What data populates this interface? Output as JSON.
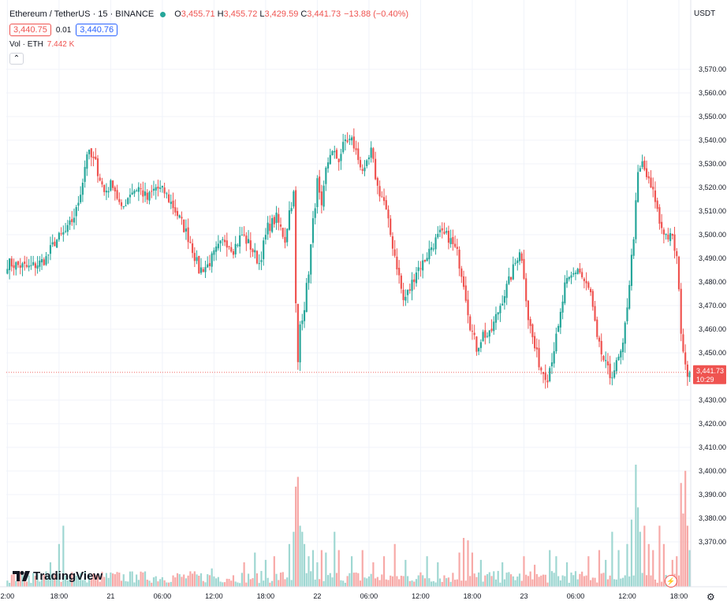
{
  "header": {
    "symbol": "Ethereum / TetherUS · 15 · BINANCE",
    "open_key": "O",
    "open": "3,455.71",
    "high_key": "H",
    "high": "3,455.72",
    "low_key": "L",
    "low": "3,429.59",
    "close_key": "C",
    "close": "3,441.73",
    "change": "−13.88 (−0.40%)",
    "bid": "3,440.75",
    "spread": "0.01",
    "ask": "3,440.76",
    "vol_label": "Vol · ETH",
    "vol_value": "7.442 K",
    "collapse_icon": "chevron-up-icon"
  },
  "price_axis": {
    "currency": "USDT"
  },
  "last_price": {
    "price": "3,441.73",
    "countdown": "10:29"
  },
  "branding": {
    "logo_text": "TradingView"
  },
  "colors": {
    "up": "#26a69a",
    "down": "#ef5350",
    "vol_up": "#9fd7d2",
    "vol_down": "#f7a9a7",
    "grid": "#f0f3fa"
  },
  "chart_data": {
    "type": "candlestick",
    "ylim": [
      3362,
      3580
    ],
    "y_ticks": [
      3370,
      3380,
      3390,
      3400,
      3410,
      3420,
      3430,
      3440,
      3450,
      3460,
      3470,
      3480,
      3490,
      3500,
      3510,
      3520,
      3530,
      3540,
      3550,
      3560,
      3570
    ],
    "y_tick_labels": [
      "3,370.00",
      "3,380.00",
      "3,390.00",
      "3,400.00",
      "3,410.00",
      "3,420.00",
      "3,430.00",
      "3,440.00",
      "3,450.00",
      "3,460.00",
      "3,470.00",
      "3,480.00",
      "3,490.00",
      "3,500.00",
      "3,510.00",
      "3,520.00",
      "3,530.00",
      "3,540.00",
      "3,550.00",
      "3,560.00",
      "3,570.00"
    ],
    "x_tick_labels": [
      {
        "bar": 0,
        "label": "2:00"
      },
      {
        "bar": 24,
        "label": "18:00"
      },
      {
        "bar": 48,
        "label": "21"
      },
      {
        "bar": 72,
        "label": "06:00"
      },
      {
        "bar": 96,
        "label": "12:00"
      },
      {
        "bar": 120,
        "label": "18:00"
      },
      {
        "bar": 144,
        "label": "22"
      },
      {
        "bar": 168,
        "label": "06:00"
      },
      {
        "bar": 192,
        "label": "12:00"
      },
      {
        "bar": 216,
        "label": "18:00"
      },
      {
        "bar": 240,
        "label": "23"
      },
      {
        "bar": 264,
        "label": "06:00"
      },
      {
        "bar": 288,
        "label": "12:00"
      },
      {
        "bar": 312,
        "label": "18:00"
      }
    ],
    "bar_count": 318,
    "last_price_value": 3441.73,
    "close_path": [
      [
        0,
        3488
      ],
      [
        5,
        3487
      ],
      [
        10,
        3486
      ],
      [
        15,
        3488
      ],
      [
        18,
        3490
      ],
      [
        22,
        3497
      ],
      [
        28,
        3502
      ],
      [
        32,
        3510
      ],
      [
        35,
        3523
      ],
      [
        37,
        3535
      ],
      [
        41,
        3530
      ],
      [
        45,
        3518
      ],
      [
        49,
        3522
      ],
      [
        53,
        3510
      ],
      [
        57,
        3518
      ],
      [
        61,
        3520
      ],
      [
        65,
        3515
      ],
      [
        69,
        3520
      ],
      [
        73,
        3518
      ],
      [
        77,
        3512
      ],
      [
        81,
        3505
      ],
      [
        85,
        3497
      ],
      [
        89,
        3485
      ],
      [
        93,
        3487
      ],
      [
        97,
        3493
      ],
      [
        101,
        3498
      ],
      [
        105,
        3494
      ],
      [
        109,
        3500
      ],
      [
        113,
        3495
      ],
      [
        117,
        3488
      ],
      [
        121,
        3503
      ],
      [
        125,
        3507
      ],
      [
        129,
        3498
      ],
      [
        131,
        3510
      ],
      [
        133,
        3517
      ],
      [
        134,
        3470
      ],
      [
        135,
        3445
      ],
      [
        136,
        3462
      ],
      [
        138,
        3470
      ],
      [
        140,
        3485
      ],
      [
        142,
        3505
      ],
      [
        144,
        3522
      ],
      [
        146,
        3510
      ],
      [
        148,
        3527
      ],
      [
        150,
        3535
      ],
      [
        154,
        3532
      ],
      [
        157,
        3540
      ],
      [
        160,
        3540
      ],
      [
        163,
        3532
      ],
      [
        166,
        3526
      ],
      [
        169,
        3535
      ],
      [
        172,
        3520
      ],
      [
        175,
        3514
      ],
      [
        178,
        3500
      ],
      [
        181,
        3487
      ],
      [
        184,
        3472
      ],
      [
        187,
        3477
      ],
      [
        190,
        3485
      ],
      [
        193,
        3488
      ],
      [
        197,
        3495
      ],
      [
        201,
        3500
      ],
      [
        205,
        3499
      ],
      [
        209,
        3492
      ],
      [
        212,
        3480
      ],
      [
        215,
        3462
      ],
      [
        218,
        3452
      ],
      [
        221,
        3458
      ],
      [
        224,
        3457
      ],
      [
        227,
        3465
      ],
      [
        230,
        3473
      ],
      [
        233,
        3480
      ],
      [
        236,
        3488
      ],
      [
        238,
        3494
      ],
      [
        240,
        3483
      ],
      [
        242,
        3465
      ],
      [
        245,
        3452
      ],
      [
        248,
        3443
      ],
      [
        251,
        3440
      ],
      [
        253,
        3448
      ],
      [
        256,
        3460
      ],
      [
        259,
        3478
      ],
      [
        262,
        3482
      ],
      [
        265,
        3486
      ],
      [
        268,
        3480
      ],
      [
        271,
        3475
      ],
      [
        274,
        3455
      ],
      [
        277,
        3447
      ],
      [
        280,
        3440
      ],
      [
        283,
        3445
      ],
      [
        286,
        3452
      ],
      [
        289,
        3480
      ],
      [
        291,
        3500
      ],
      [
        293,
        3525
      ],
      [
        295,
        3530
      ],
      [
        298,
        3522
      ],
      [
        301,
        3515
      ],
      [
        303,
        3505
      ],
      [
        306,
        3500
      ],
      [
        309,
        3498
      ],
      [
        311,
        3490
      ],
      [
        313,
        3460
      ],
      [
        315,
        3443
      ],
      [
        317,
        3441.73
      ]
    ],
    "volume_spikes": [
      [
        0,
        0.05
      ],
      [
        20,
        0.2
      ],
      [
        24,
        0.35
      ],
      [
        26,
        0.5
      ],
      [
        30,
        0.12
      ],
      [
        60,
        0.1
      ],
      [
        95,
        0.15
      ],
      [
        110,
        0.2
      ],
      [
        115,
        0.28
      ],
      [
        120,
        0.22
      ],
      [
        124,
        0.25
      ],
      [
        128,
        0.12
      ],
      [
        131,
        0.35
      ],
      [
        133,
        0.45
      ],
      [
        134,
        0.82
      ],
      [
        135,
        0.9
      ],
      [
        136,
        0.5
      ],
      [
        137,
        0.45
      ],
      [
        138,
        0.35
      ],
      [
        140,
        0.25
      ],
      [
        142,
        0.3
      ],
      [
        144,
        0.2
      ],
      [
        146,
        0.3
      ],
      [
        148,
        0.28
      ],
      [
        152,
        0.45
      ],
      [
        154,
        0.3
      ],
      [
        160,
        0.25
      ],
      [
        165,
        0.3
      ],
      [
        170,
        0.2
      ],
      [
        175,
        0.25
      ],
      [
        180,
        0.35
      ],
      [
        185,
        0.22
      ],
      [
        195,
        0.25
      ],
      [
        200,
        0.2
      ],
      [
        210,
        0.28
      ],
      [
        212,
        0.4
      ],
      [
        214,
        0.38
      ],
      [
        216,
        0.28
      ],
      [
        220,
        0.22
      ],
      [
        230,
        0.2
      ],
      [
        240,
        0.25
      ],
      [
        245,
        0.18
      ],
      [
        252,
        0.3
      ],
      [
        255,
        0.25
      ],
      [
        260,
        0.2
      ],
      [
        270,
        0.25
      ],
      [
        275,
        0.3
      ],
      [
        278,
        0.22
      ],
      [
        281,
        0.45
      ],
      [
        284,
        0.3
      ],
      [
        288,
        0.35
      ],
      [
        290,
        0.55
      ],
      [
        292,
        1.0
      ],
      [
        293,
        0.65
      ],
      [
        294,
        0.45
      ],
      [
        296,
        0.5
      ],
      [
        298,
        0.35
      ],
      [
        300,
        0.3
      ],
      [
        303,
        0.5
      ],
      [
        305,
        0.35
      ],
      [
        309,
        0.22
      ],
      [
        311,
        0.25
      ],
      [
        313,
        0.85
      ],
      [
        314,
        0.6
      ],
      [
        315,
        0.95
      ],
      [
        316,
        0.5
      ],
      [
        317,
        0.3
      ]
    ]
  }
}
